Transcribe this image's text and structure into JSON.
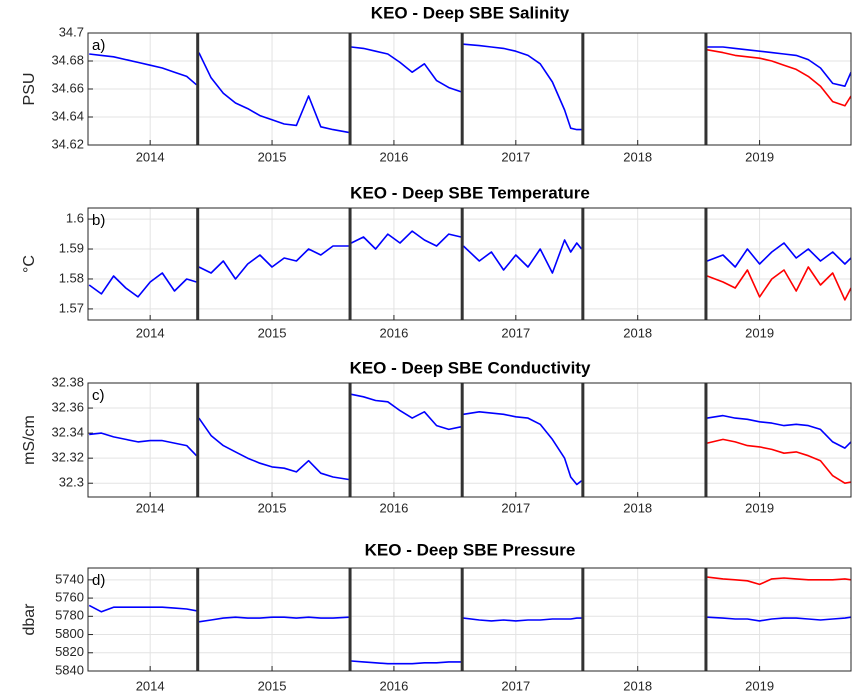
{
  "chart_data": [
    {
      "type": "line",
      "title": "KEO - Deep SBE Salinity",
      "ylabel": "PSU",
      "panel_label": "a)",
      "x": [
        2013.5,
        2013.6,
        2013.7,
        2013.8,
        2013.9,
        2014.0,
        2014.1,
        2014.2,
        2014.3,
        2014.38,
        2014.39,
        2014.4,
        2014.5,
        2014.6,
        2014.7,
        2014.8,
        2014.9,
        2015.0,
        2015.1,
        2015.2,
        2015.3,
        2015.4,
        2015.5,
        2015.63,
        2015.64,
        2015.65,
        2015.75,
        2015.85,
        2015.95,
        2016.05,
        2016.15,
        2016.25,
        2016.35,
        2016.45,
        2016.55,
        2016.56,
        2016.57,
        2016.7,
        2016.8,
        2016.9,
        2017.0,
        2017.1,
        2017.2,
        2017.3,
        2017.4,
        2017.45,
        2017.5,
        2017.54,
        2018.0,
        2018.57,
        2018.7,
        2018.8,
        2018.9,
        2019.0,
        2019.1,
        2019.2,
        2019.3,
        2019.4,
        2019.5,
        2019.6,
        2019.7,
        2019.75
      ],
      "series": [
        {
          "color": "#0000ff",
          "values": [
            34.685,
            34.684,
            34.683,
            34.681,
            34.679,
            34.677,
            34.675,
            34.672,
            34.669,
            34.663,
            null,
            34.686,
            34.668,
            34.657,
            34.65,
            34.646,
            34.641,
            34.638,
            34.635,
            34.634,
            34.655,
            34.633,
            34.631,
            34.629,
            null,
            34.69,
            34.689,
            34.687,
            34.685,
            34.679,
            34.672,
            34.678,
            34.666,
            34.661,
            34.658,
            null,
            34.692,
            34.691,
            34.69,
            34.689,
            34.687,
            34.684,
            34.678,
            34.665,
            34.645,
            34.632,
            34.631,
            34.631,
            null,
            34.69,
            34.69,
            34.689,
            34.688,
            34.687,
            34.686,
            34.685,
            34.684,
            34.681,
            34.675,
            34.664,
            34.662,
            34.672
          ]
        },
        {
          "color": "#ff0000",
          "values": [
            null,
            null,
            null,
            null,
            null,
            null,
            null,
            null,
            null,
            null,
            null,
            null,
            null,
            null,
            null,
            null,
            null,
            null,
            null,
            null,
            null,
            null,
            null,
            null,
            null,
            null,
            null,
            null,
            null,
            null,
            null,
            null,
            null,
            null,
            null,
            null,
            null,
            null,
            null,
            null,
            null,
            null,
            null,
            null,
            null,
            null,
            null,
            null,
            null,
            34.688,
            34.686,
            34.684,
            34.683,
            34.682,
            34.68,
            34.677,
            34.674,
            34.669,
            34.662,
            34.651,
            34.648,
            34.655
          ]
        }
      ],
      "xlim": [
        2013.49,
        2019.75
      ],
      "xticks": [
        2014,
        2015,
        2016,
        2017,
        2018,
        2019
      ],
      "ylim": [
        34.62,
        34.7
      ],
      "yticks": [
        34.62,
        34.64,
        34.66,
        34.68,
        34.7
      ],
      "deployment_lines": [
        2014.39,
        2015.64,
        2016.56,
        2017.55,
        2018.56
      ],
      "grid": true
    },
    {
      "type": "line",
      "title": "KEO - Deep SBE Temperature",
      "ylabel": "°C",
      "panel_label": "b)",
      "x": [
        2013.5,
        2013.6,
        2013.7,
        2013.8,
        2013.9,
        2014.0,
        2014.1,
        2014.2,
        2014.3,
        2014.38,
        2014.39,
        2014.4,
        2014.5,
        2014.6,
        2014.7,
        2014.8,
        2014.9,
        2015.0,
        2015.1,
        2015.2,
        2015.3,
        2015.4,
        2015.5,
        2015.63,
        2015.64,
        2015.65,
        2015.75,
        2015.85,
        2015.95,
        2016.05,
        2016.15,
        2016.25,
        2016.35,
        2016.45,
        2016.55,
        2016.56,
        2016.57,
        2016.7,
        2016.8,
        2016.9,
        2017.0,
        2017.1,
        2017.2,
        2017.3,
        2017.4,
        2017.45,
        2017.5,
        2017.54,
        2018.0,
        2018.57,
        2018.7,
        2018.8,
        2018.9,
        2019.0,
        2019.1,
        2019.2,
        2019.3,
        2019.4,
        2019.5,
        2019.6,
        2019.7,
        2019.75
      ],
      "series": [
        {
          "color": "#0000ff",
          "values": [
            1.578,
            1.575,
            1.581,
            1.577,
            1.574,
            1.579,
            1.582,
            1.576,
            1.58,
            1.579,
            null,
            1.584,
            1.582,
            1.586,
            1.58,
            1.585,
            1.588,
            1.584,
            1.587,
            1.586,
            1.59,
            1.588,
            1.591,
            1.591,
            null,
            1.592,
            1.594,
            1.59,
            1.595,
            1.592,
            1.596,
            1.593,
            1.591,
            1.595,
            1.594,
            null,
            1.591,
            1.586,
            1.589,
            1.583,
            1.588,
            1.584,
            1.59,
            1.582,
            1.593,
            1.589,
            1.592,
            1.59,
            null,
            1.586,
            1.588,
            1.584,
            1.59,
            1.585,
            1.589,
            1.592,
            1.587,
            1.59,
            1.586,
            1.589,
            1.585,
            1.587
          ]
        },
        {
          "color": "#ff0000",
          "values": [
            null,
            null,
            null,
            null,
            null,
            null,
            null,
            null,
            null,
            null,
            null,
            null,
            null,
            null,
            null,
            null,
            null,
            null,
            null,
            null,
            null,
            null,
            null,
            null,
            null,
            null,
            null,
            null,
            null,
            null,
            null,
            null,
            null,
            null,
            null,
            null,
            null,
            null,
            null,
            null,
            null,
            null,
            null,
            null,
            null,
            null,
            null,
            null,
            null,
            1.581,
            1.579,
            1.577,
            1.583,
            1.574,
            1.58,
            1.583,
            1.576,
            1.584,
            1.578,
            1.582,
            1.573,
            1.577
          ]
        }
      ],
      "xlim": [
        2013.49,
        2019.75
      ],
      "xticks": [
        2014,
        2015,
        2016,
        2017,
        2018,
        2019
      ],
      "ylim": [
        1.5663,
        1.6037
      ],
      "yticks": [
        1.57,
        1.58,
        1.59,
        1.6
      ],
      "deployment_lines": [
        2014.39,
        2015.64,
        2016.56,
        2017.55,
        2018.56
      ],
      "grid": true
    },
    {
      "type": "line",
      "title": "KEO - Deep SBE Conductivity",
      "ylabel": "mS/cm",
      "panel_label": "c)",
      "x": [
        2013.5,
        2013.6,
        2013.7,
        2013.8,
        2013.9,
        2014.0,
        2014.1,
        2014.2,
        2014.3,
        2014.38,
        2014.39,
        2014.4,
        2014.5,
        2014.6,
        2014.7,
        2014.8,
        2014.9,
        2015.0,
        2015.1,
        2015.2,
        2015.3,
        2015.4,
        2015.5,
        2015.63,
        2015.64,
        2015.65,
        2015.75,
        2015.85,
        2015.95,
        2016.05,
        2016.15,
        2016.25,
        2016.35,
        2016.45,
        2016.55,
        2016.56,
        2016.57,
        2016.7,
        2016.8,
        2016.9,
        2017.0,
        2017.1,
        2017.2,
        2017.3,
        2017.4,
        2017.45,
        2017.5,
        2017.54,
        2018.0,
        2018.57,
        2018.7,
        2018.8,
        2018.9,
        2019.0,
        2019.1,
        2019.2,
        2019.3,
        2019.4,
        2019.5,
        2019.6,
        2019.7,
        2019.75
      ],
      "series": [
        {
          "color": "#0000ff",
          "values": [
            32.339,
            32.34,
            32.337,
            32.335,
            32.333,
            32.334,
            32.334,
            32.332,
            32.33,
            32.322,
            null,
            32.352,
            32.338,
            32.33,
            32.325,
            32.32,
            32.316,
            32.313,
            32.312,
            32.309,
            32.318,
            32.308,
            32.305,
            32.303,
            null,
            32.371,
            32.369,
            32.366,
            32.365,
            32.358,
            32.352,
            32.357,
            32.346,
            32.343,
            32.345,
            null,
            32.355,
            32.357,
            32.356,
            32.355,
            32.353,
            32.352,
            32.347,
            32.335,
            32.32,
            32.305,
            32.299,
            32.302,
            null,
            32.352,
            32.354,
            32.352,
            32.351,
            32.349,
            32.348,
            32.346,
            32.347,
            32.346,
            32.343,
            32.333,
            32.328,
            32.333
          ]
        },
        {
          "color": "#ff0000",
          "values": [
            null,
            null,
            null,
            null,
            null,
            null,
            null,
            null,
            null,
            null,
            null,
            null,
            null,
            null,
            null,
            null,
            null,
            null,
            null,
            null,
            null,
            null,
            null,
            null,
            null,
            null,
            null,
            null,
            null,
            null,
            null,
            null,
            null,
            null,
            null,
            null,
            null,
            null,
            null,
            null,
            null,
            null,
            null,
            null,
            null,
            null,
            null,
            null,
            null,
            32.332,
            32.335,
            32.333,
            32.33,
            32.329,
            32.327,
            32.324,
            32.325,
            32.322,
            32.318,
            32.306,
            32.3,
            32.301
          ]
        }
      ],
      "xlim": [
        2013.49,
        2019.75
      ],
      "xticks": [
        2014,
        2015,
        2016,
        2017,
        2018,
        2019
      ],
      "ylim": [
        32.289,
        32.38
      ],
      "yticks": [
        32.3,
        32.32,
        32.34,
        32.36,
        32.38
      ],
      "deployment_lines": [
        2014.39,
        2015.64,
        2016.56,
        2017.55,
        2018.56
      ],
      "grid": true
    },
    {
      "type": "line",
      "title": "KEO - Deep SBE Pressure",
      "ylabel": "dbar",
      "panel_label": "d)",
      "x": [
        2013.5,
        2013.6,
        2013.7,
        2013.8,
        2013.9,
        2014.0,
        2014.1,
        2014.2,
        2014.3,
        2014.38,
        2014.39,
        2014.4,
        2014.5,
        2014.6,
        2014.7,
        2014.8,
        2014.9,
        2015.0,
        2015.1,
        2015.2,
        2015.3,
        2015.4,
        2015.5,
        2015.63,
        2015.64,
        2015.65,
        2015.75,
        2015.85,
        2015.95,
        2016.05,
        2016.15,
        2016.25,
        2016.35,
        2016.45,
        2016.55,
        2016.56,
        2016.57,
        2016.7,
        2016.8,
        2016.9,
        2017.0,
        2017.1,
        2017.2,
        2017.3,
        2017.4,
        2017.45,
        2017.5,
        2017.54,
        2018.0,
        2018.57,
        2018.7,
        2018.8,
        2018.9,
        2019.0,
        2019.1,
        2019.2,
        2019.3,
        2019.4,
        2019.5,
        2019.6,
        2019.7,
        2019.75
      ],
      "series": [
        {
          "color": "#0000ff",
          "values": [
            5768,
            5775,
            5770,
            5770,
            5770,
            5770,
            5770,
            5771,
            5772,
            5774,
            null,
            5786,
            5784,
            5782,
            5781,
            5782,
            5782,
            5781,
            5781,
            5782,
            5781,
            5782,
            5782,
            5781,
            null,
            5829,
            5830,
            5831,
            5832,
            5832,
            5832,
            5831,
            5831,
            5830,
            5830,
            null,
            5782,
            5784,
            5785,
            5784,
            5785,
            5784,
            5784,
            5783,
            5783,
            5783,
            5782,
            5782,
            null,
            5781,
            5782,
            5783,
            5783,
            5785,
            5783,
            5782,
            5782,
            5783,
            5784,
            5783,
            5782,
            5781
          ]
        },
        {
          "color": "#ff0000",
          "values": [
            null,
            null,
            null,
            null,
            null,
            null,
            null,
            null,
            null,
            null,
            null,
            null,
            null,
            null,
            null,
            null,
            null,
            null,
            null,
            null,
            null,
            null,
            null,
            null,
            null,
            null,
            null,
            null,
            null,
            null,
            null,
            null,
            null,
            null,
            null,
            null,
            null,
            null,
            null,
            null,
            null,
            null,
            null,
            null,
            null,
            null,
            null,
            null,
            null,
            5737,
            5739,
            5740,
            5741,
            5745,
            5739,
            5738,
            5739,
            5740,
            5740,
            5740,
            5739,
            5740
          ]
        }
      ],
      "xlim": [
        2013.49,
        2019.75
      ],
      "xticks": [
        2014,
        2015,
        2016,
        2017,
        2018,
        2019
      ],
      "ylim": [
        5727,
        5840
      ],
      "yticks": [
        5740,
        5760,
        5780,
        5800,
        5820,
        5840
      ],
      "y_reversed": true,
      "deployment_lines": [
        2014.39,
        2015.64,
        2016.56,
        2017.55,
        2018.56
      ],
      "grid": true
    }
  ]
}
